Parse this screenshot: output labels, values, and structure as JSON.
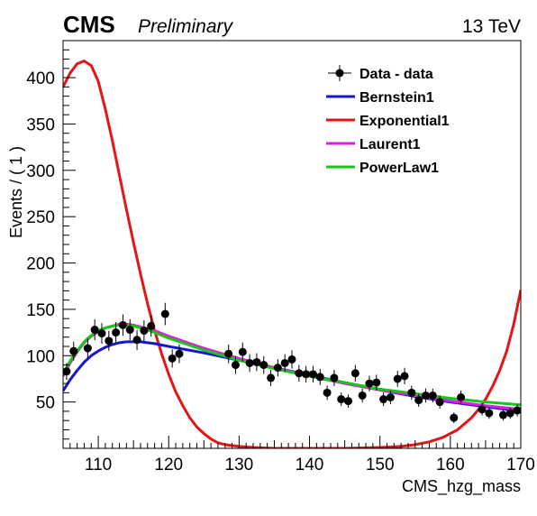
{
  "header": {
    "experiment": "CMS",
    "status": "Preliminary",
    "energy": "13 TeV"
  },
  "chart_data": {
    "type": "scatter",
    "xlabel": "CMS_hzg_mass",
    "ylabel": "Events / ( 1 )",
    "xlim": [
      105,
      170
    ],
    "ylim": [
      0,
      440
    ],
    "xticks": [
      110,
      120,
      130,
      140,
      150,
      160,
      170
    ],
    "yticks": [
      50,
      100,
      150,
      200,
      250,
      300,
      350,
      400
    ],
    "grid": false,
    "legend_position": "top-right",
    "data": {
      "name": "Data - data",
      "color": "#000000",
      "points": [
        {
          "x": 105.5,
          "y": 83
        },
        {
          "x": 106.5,
          "y": 105
        },
        {
          "x": 108.5,
          "y": 108
        },
        {
          "x": 109.5,
          "y": 128
        },
        {
          "x": 110.5,
          "y": 124
        },
        {
          "x": 111.5,
          "y": 116
        },
        {
          "x": 112.5,
          "y": 125
        },
        {
          "x": 113.5,
          "y": 133
        },
        {
          "x": 114.5,
          "y": 128
        },
        {
          "x": 115.5,
          "y": 117
        },
        {
          "x": 116.5,
          "y": 127
        },
        {
          "x": 117.5,
          "y": 132
        },
        {
          "x": 119.5,
          "y": 145
        },
        {
          "x": 120.5,
          "y": 97
        },
        {
          "x": 121.5,
          "y": 102
        },
        {
          "x": 128.5,
          "y": 102
        },
        {
          "x": 129.5,
          "y": 90
        },
        {
          "x": 130.5,
          "y": 104
        },
        {
          "x": 131.5,
          "y": 92
        },
        {
          "x": 132.5,
          "y": 93
        },
        {
          "x": 133.5,
          "y": 90
        },
        {
          "x": 134.5,
          "y": 76
        },
        {
          "x": 135.5,
          "y": 87
        },
        {
          "x": 136.5,
          "y": 92
        },
        {
          "x": 137.5,
          "y": 96
        },
        {
          "x": 138.5,
          "y": 81
        },
        {
          "x": 139.5,
          "y": 80
        },
        {
          "x": 140.5,
          "y": 80
        },
        {
          "x": 141.5,
          "y": 77
        },
        {
          "x": 142.5,
          "y": 60
        },
        {
          "x": 143.5,
          "y": 76
        },
        {
          "x": 144.5,
          "y": 53
        },
        {
          "x": 145.5,
          "y": 51
        },
        {
          "x": 146.5,
          "y": 81
        },
        {
          "x": 147.5,
          "y": 57
        },
        {
          "x": 148.5,
          "y": 70
        },
        {
          "x": 149.5,
          "y": 71
        },
        {
          "x": 150.5,
          "y": 53
        },
        {
          "x": 151.5,
          "y": 55
        },
        {
          "x": 152.5,
          "y": 75
        },
        {
          "x": 153.5,
          "y": 78
        },
        {
          "x": 154.5,
          "y": 60
        },
        {
          "x": 155.5,
          "y": 52
        },
        {
          "x": 156.5,
          "y": 57
        },
        {
          "x": 157.5,
          "y": 57
        },
        {
          "x": 158.5,
          "y": 50
        },
        {
          "x": 160.5,
          "y": 33
        },
        {
          "x": 161.5,
          "y": 55
        },
        {
          "x": 164.5,
          "y": 42
        },
        {
          "x": 165.5,
          "y": 38
        },
        {
          "x": 167.5,
          "y": 36
        },
        {
          "x": 168.5,
          "y": 38
        },
        {
          "x": 169.5,
          "y": 41
        }
      ]
    },
    "series": [
      {
        "name": "Bernstein1",
        "color": "#1515d4",
        "points": [
          {
            "x": 105,
            "y": 62
          },
          {
            "x": 106,
            "y": 74
          },
          {
            "x": 107,
            "y": 84
          },
          {
            "x": 108,
            "y": 93
          },
          {
            "x": 109,
            "y": 100
          },
          {
            "x": 110,
            "y": 105
          },
          {
            "x": 111,
            "y": 109
          },
          {
            "x": 112,
            "y": 112
          },
          {
            "x": 113,
            "y": 114
          },
          {
            "x": 114,
            "y": 115
          },
          {
            "x": 115,
            "y": 115
          },
          {
            "x": 116,
            "y": 115
          },
          {
            "x": 118,
            "y": 113
          },
          {
            "x": 120,
            "y": 110
          },
          {
            "x": 125,
            "y": 103
          },
          {
            "x": 130,
            "y": 95
          },
          {
            "x": 135,
            "y": 87
          },
          {
            "x": 140,
            "y": 79
          },
          {
            "x": 145,
            "y": 71
          },
          {
            "x": 150,
            "y": 63
          },
          {
            "x": 155,
            "y": 56
          },
          {
            "x": 160,
            "y": 50
          },
          {
            "x": 165,
            "y": 45
          },
          {
            "x": 170,
            "y": 40
          }
        ]
      },
      {
        "name": "Exponential1",
        "color": "#e61515",
        "points": [
          {
            "x": 105,
            "y": 390
          },
          {
            "x": 106,
            "y": 405
          },
          {
            "x": 107,
            "y": 415
          },
          {
            "x": 108,
            "y": 418
          },
          {
            "x": 109,
            "y": 413
          },
          {
            "x": 110,
            "y": 396
          },
          {
            "x": 111,
            "y": 366
          },
          {
            "x": 112,
            "y": 332
          },
          {
            "x": 113,
            "y": 295
          },
          {
            "x": 114,
            "y": 258
          },
          {
            "x": 115,
            "y": 222
          },
          {
            "x": 116,
            "y": 188
          },
          {
            "x": 117,
            "y": 156
          },
          {
            "x": 118,
            "y": 127
          },
          {
            "x": 119,
            "y": 102
          },
          {
            "x": 120,
            "y": 80
          },
          {
            "x": 121,
            "y": 61
          },
          {
            "x": 122,
            "y": 46
          },
          {
            "x": 123,
            "y": 33
          },
          {
            "x": 124,
            "y": 23
          },
          {
            "x": 125,
            "y": 16
          },
          {
            "x": 126,
            "y": 10
          },
          {
            "x": 127,
            "y": 6
          },
          {
            "x": 128,
            "y": 4
          },
          {
            "x": 130,
            "y": 2
          },
          {
            "x": 132,
            "y": 1
          },
          {
            "x": 135,
            "y": 0
          },
          {
            "x": 140,
            "y": 0
          },
          {
            "x": 145,
            "y": 0
          },
          {
            "x": 150,
            "y": 1
          },
          {
            "x": 153,
            "y": 2
          },
          {
            "x": 155,
            "y": 4
          },
          {
            "x": 157,
            "y": 7
          },
          {
            "x": 159,
            "y": 12
          },
          {
            "x": 161,
            "y": 20
          },
          {
            "x": 163,
            "y": 33
          },
          {
            "x": 164,
            "y": 42
          },
          {
            "x": 165,
            "y": 53
          },
          {
            "x": 166,
            "y": 67
          },
          {
            "x": 167,
            "y": 84
          },
          {
            "x": 168,
            "y": 105
          },
          {
            "x": 169,
            "y": 134
          },
          {
            "x": 170,
            "y": 171
          }
        ]
      },
      {
        "name": "Laurent1",
        "color": "#e815e8",
        "points": [
          {
            "x": 105,
            "y": 78
          },
          {
            "x": 106,
            "y": 92
          },
          {
            "x": 107,
            "y": 104
          },
          {
            "x": 108,
            "y": 114
          },
          {
            "x": 109,
            "y": 121
          },
          {
            "x": 110,
            "y": 126
          },
          {
            "x": 111,
            "y": 130
          },
          {
            "x": 112,
            "y": 132
          },
          {
            "x": 113,
            "y": 134
          },
          {
            "x": 114,
            "y": 134
          },
          {
            "x": 115,
            "y": 133
          },
          {
            "x": 116,
            "y": 131
          },
          {
            "x": 118,
            "y": 127
          },
          {
            "x": 120,
            "y": 121
          },
          {
            "x": 125,
            "y": 108
          },
          {
            "x": 130,
            "y": 97
          },
          {
            "x": 135,
            "y": 87
          },
          {
            "x": 140,
            "y": 78
          },
          {
            "x": 145,
            "y": 70
          },
          {
            "x": 150,
            "y": 63
          },
          {
            "x": 155,
            "y": 57
          },
          {
            "x": 160,
            "y": 51
          },
          {
            "x": 165,
            "y": 46
          },
          {
            "x": 170,
            "y": 42
          }
        ]
      },
      {
        "name": "PowerLaw1",
        "color": "#15c815",
        "points": [
          {
            "x": 105,
            "y": 80
          },
          {
            "x": 106,
            "y": 94
          },
          {
            "x": 107,
            "y": 105
          },
          {
            "x": 108,
            "y": 115
          },
          {
            "x": 109,
            "y": 122
          },
          {
            "x": 110,
            "y": 127
          },
          {
            "x": 111,
            "y": 130
          },
          {
            "x": 112,
            "y": 132
          },
          {
            "x": 113,
            "y": 133
          },
          {
            "x": 114,
            "y": 133
          },
          {
            "x": 115,
            "y": 132
          },
          {
            "x": 116,
            "y": 130
          },
          {
            "x": 118,
            "y": 125
          },
          {
            "x": 120,
            "y": 119
          },
          {
            "x": 125,
            "y": 106
          },
          {
            "x": 130,
            "y": 95
          },
          {
            "x": 135,
            "y": 86
          },
          {
            "x": 140,
            "y": 78
          },
          {
            "x": 145,
            "y": 71
          },
          {
            "x": 150,
            "y": 64
          },
          {
            "x": 155,
            "y": 59
          },
          {
            "x": 160,
            "y": 54
          },
          {
            "x": 165,
            "y": 50
          },
          {
            "x": 170,
            "y": 47
          }
        ]
      }
    ]
  }
}
